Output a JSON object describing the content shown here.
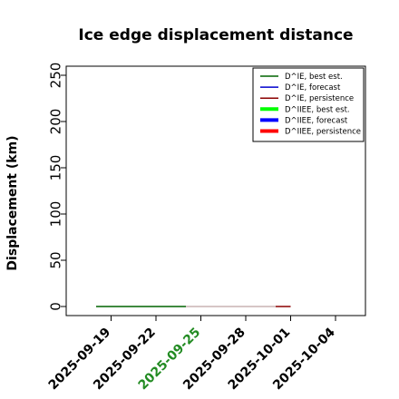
{
  "chart_data": {
    "type": "line",
    "title": "Ice edge displacement distance",
    "xlabel": "",
    "ylabel": "Displacement (km)",
    "ylim": [
      0,
      250
    ],
    "y_ticks": [
      0,
      50,
      100,
      150,
      200,
      250
    ],
    "x_tick_labels": [
      "2025-09-19",
      "2025-09-22",
      "2025-09-25",
      "2025-09-28",
      "2025-10-01",
      "2025-10-04"
    ],
    "highlighted_x_tick": "2025-09-25",
    "xlim": [
      "2025-09-16",
      "2025-10-06"
    ],
    "grid": false,
    "legend_position": "top-right",
    "series": [
      {
        "name": "D^IE, best est.",
        "color": "#006400",
        "x": [
          "2025-09-18",
          "2025-09-24"
        ],
        "values": [
          0,
          0
        ]
      },
      {
        "name": "D^IE, forecast",
        "color": "#0000cd",
        "x": [],
        "values": []
      },
      {
        "name": "D^IE, persistence",
        "color": "#8b0000",
        "x": [
          "2025-09-30",
          "2025-10-01"
        ],
        "values": [
          0,
          0
        ]
      },
      {
        "name": "D^IIEE, best est.",
        "color": "#00ff00",
        "x": [],
        "values": []
      },
      {
        "name": "D^IIEE, forecast",
        "color": "#0000ff",
        "x": [],
        "values": []
      },
      {
        "name": "D^IIEE, persistence",
        "color": "#ff0000",
        "x": [],
        "values": []
      },
      {
        "name": "",
        "color": "#c8b4b4",
        "x": [
          "2025-09-24",
          "2025-09-30"
        ],
        "values": [
          0,
          0
        ]
      }
    ],
    "colors": {
      "highlight_tick": "#228b22",
      "axis": "#000000"
    }
  }
}
